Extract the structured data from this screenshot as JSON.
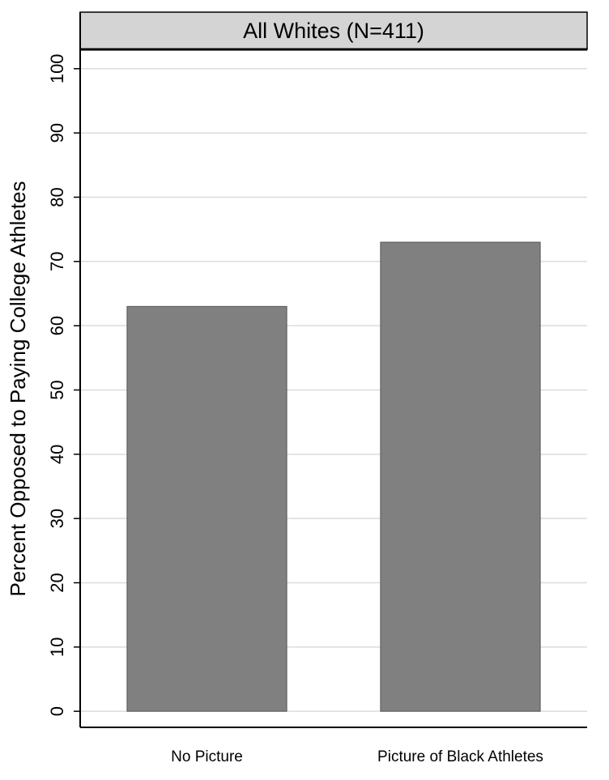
{
  "chart_data": {
    "type": "bar",
    "title": "All Whites (N=411)",
    "y_label": "Percent Opposed to Paying College Athletes",
    "categories": [
      "No Picture",
      "Picture of Black Athletes"
    ],
    "values": [
      63,
      73
    ],
    "color": "#808080",
    "ylim": [
      -2.5,
      103
    ],
    "yticks": [
      0,
      10,
      20,
      30,
      40,
      50,
      60,
      70,
      80,
      90,
      100
    ],
    "grid": true
  }
}
